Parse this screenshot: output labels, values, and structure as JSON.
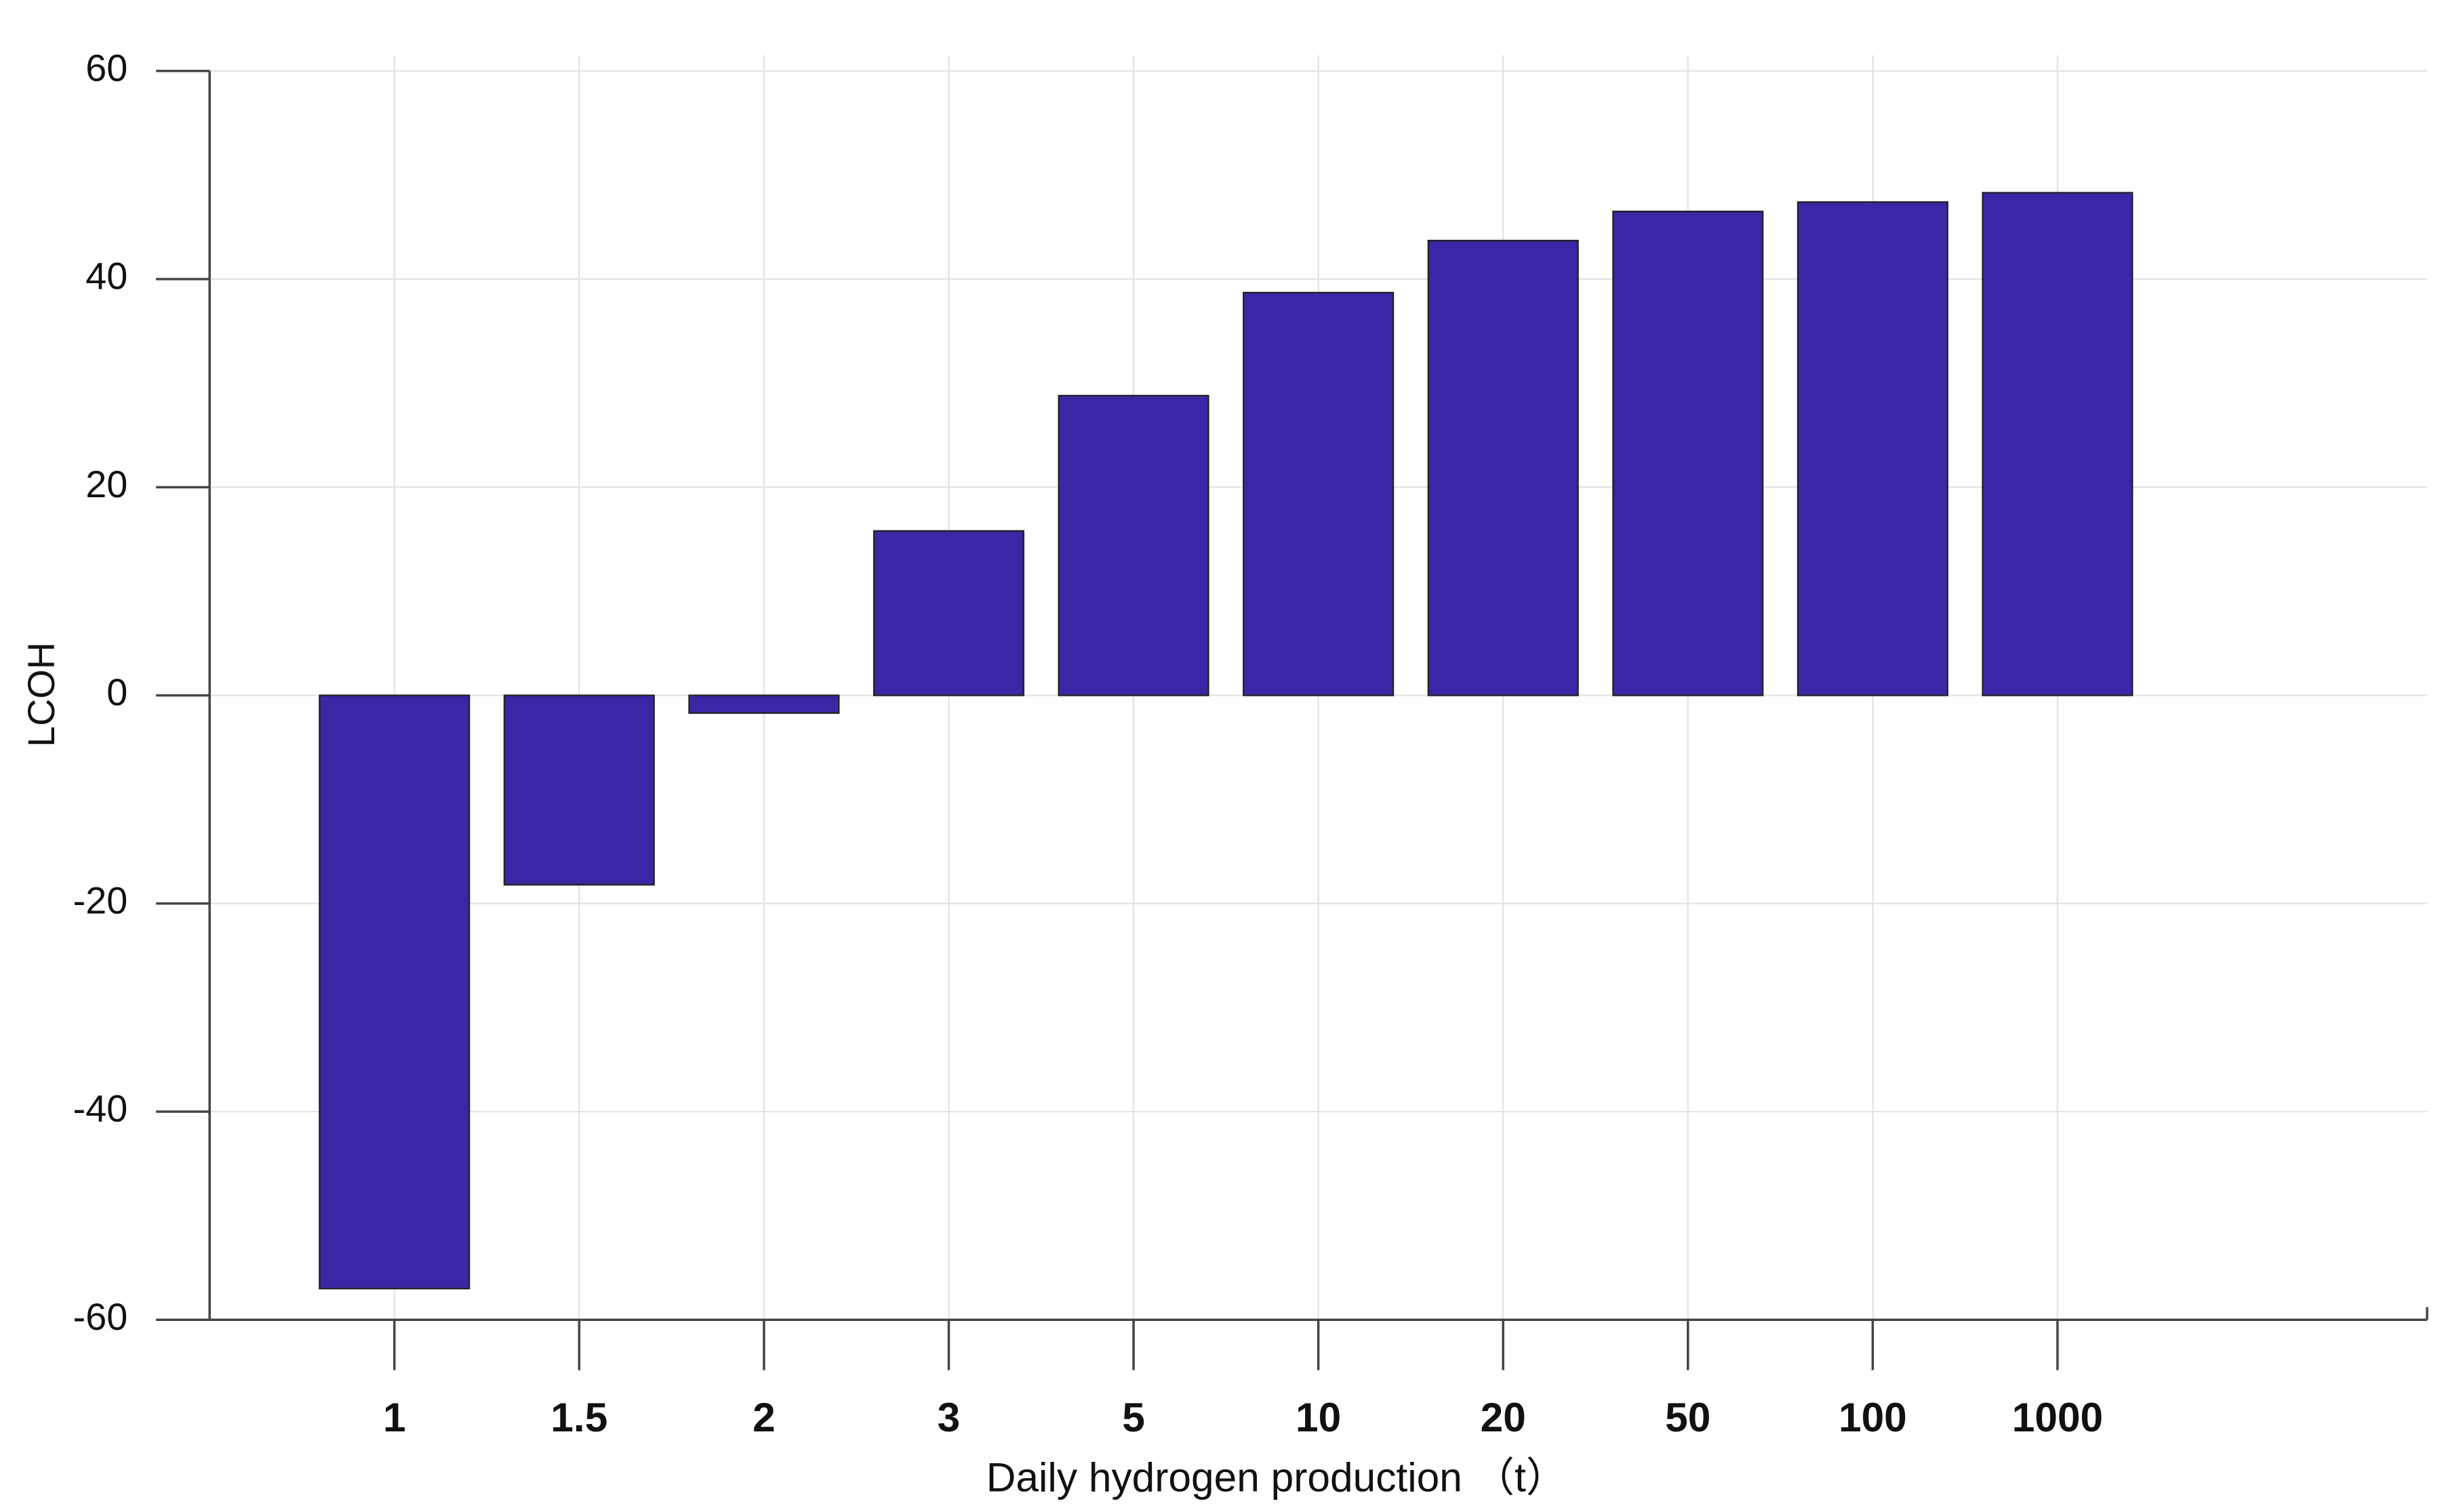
{
  "chart_data": {
    "type": "bar",
    "x_label": "Daily hydrogen production （t）",
    "y_label": "LCOH",
    "categories": [
      "1",
      "1.5",
      "2",
      "3",
      "5",
      "10",
      "20",
      "50",
      "100",
      "1000"
    ],
    "values": [
      -57,
      -18.2,
      -1.7,
      15.8,
      28.8,
      38.7,
      43.7,
      46.5,
      47.4,
      48.3
    ],
    "color": "#3a27a6",
    "ylim": [
      -60,
      60
    ],
    "yticks": [
      -60,
      -40,
      -20,
      0,
      20,
      40,
      60
    ],
    "grid": true
  }
}
